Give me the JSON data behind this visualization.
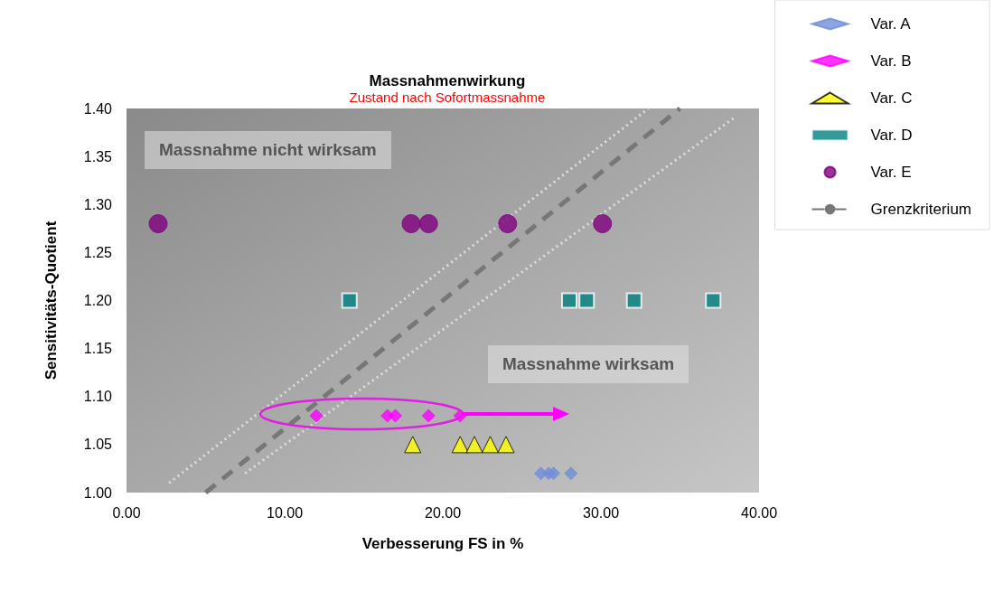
{
  "chart_data": {
    "type": "scatter",
    "title": "Massnahmenwirkung",
    "subtitle": "Zustand nach Sofortmassnahme",
    "xlabel": "Verbesserung FS in %",
    "ylabel": "Sensitivitäts-Quotient",
    "xlim": [
      0,
      40
    ],
    "xticks": [
      {
        "value": 0,
        "label": "0.00"
      },
      {
        "value": 10,
        "label": "10.00"
      },
      {
        "value": 20,
        "label": "20.00"
      },
      {
        "value": 30,
        "label": "30.00"
      },
      {
        "value": 40,
        "label": "40.00"
      }
    ],
    "ylim": [
      1.0,
      1.4
    ],
    "yticks": [
      {
        "value": 1.0,
        "label": "1.00"
      },
      {
        "value": 1.05,
        "label": "1.05"
      },
      {
        "value": 1.1,
        "label": "1.10"
      },
      {
        "value": 1.15,
        "label": "1.15"
      },
      {
        "value": 1.2,
        "label": "1.20"
      },
      {
        "value": 1.25,
        "label": "1.25"
      },
      {
        "value": 1.3,
        "label": "1.30"
      },
      {
        "value": 1.35,
        "label": "1.35"
      },
      {
        "value": 1.4,
        "label": "1.40"
      }
    ],
    "grid": false,
    "legend": "top right",
    "annotations": [
      "Massnahme nicht wirksam",
      "Massnahme wirksam"
    ],
    "series": [
      {
        "name": "Var. A",
        "color": "#6f8fd8",
        "marker": "diamond",
        "x": [
          26.2,
          26.7,
          27,
          28.1
        ],
        "values": [
          1.02,
          1.02,
          1.02,
          1.02
        ]
      },
      {
        "name": "Var. B",
        "color": "#ff00ff",
        "marker": "diamond",
        "x": [
          12,
          16.5,
          17,
          19.1,
          21.1
        ],
        "values": [
          1.08,
          1.08,
          1.08,
          1.08,
          1.08
        ]
      },
      {
        "name": "Var. C",
        "color": "#ffff00",
        "marker": "triangle",
        "x": [
          18.1,
          21.1,
          22,
          23,
          24
        ],
        "values": [
          1.05,
          1.05,
          1.05,
          1.05,
          1.05
        ]
      },
      {
        "name": "Var. D",
        "color": "#008080",
        "marker": "square",
        "x": [
          14.1,
          28,
          29.1,
          32.1,
          37.1
        ],
        "values": [
          1.2,
          1.2,
          1.2,
          1.2,
          1.2
        ]
      },
      {
        "name": "Var. E",
        "color": "#800080",
        "marker": "circle",
        "x": [
          2,
          18,
          19.1,
          24.1,
          30.1
        ],
        "values": [
          1.28,
          1.28,
          1.28,
          1.28,
          1.28
        ]
      },
      {
        "name": "Grenzkriterium",
        "type": "line",
        "color": "#777777",
        "line_style": "dashed",
        "marker": "none",
        "x": [
          5,
          35
        ],
        "values": [
          1.0,
          1.4
        ]
      },
      {
        "type": "line",
        "color": "#dddddd",
        "line_style": "dotted",
        "marker": "none",
        "x": [
          2.7,
          33
        ],
        "values": [
          1.01,
          1.4
        ]
      },
      {
        "type": "line",
        "color": "#dddddd",
        "line_style": "dotted",
        "marker": "none",
        "x": [
          7.5,
          38.4
        ],
        "values": [
          1.02,
          1.39
        ]
      }
    ]
  }
}
